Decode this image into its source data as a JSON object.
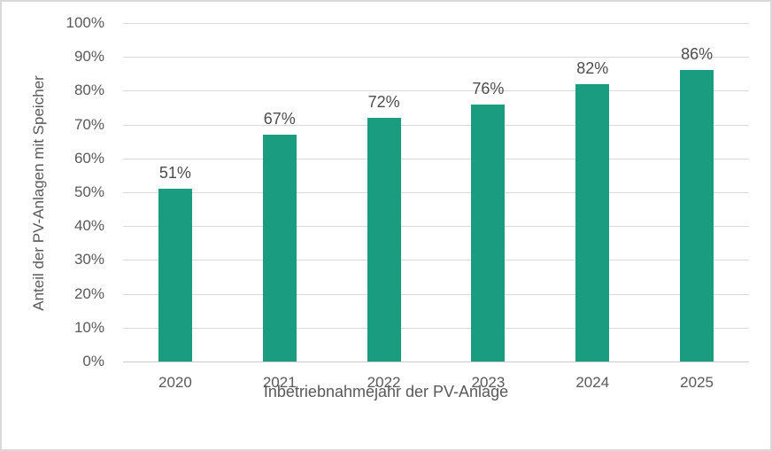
{
  "chart_data": {
    "type": "bar",
    "title": "",
    "categories": [
      "2020",
      "2021",
      "2022",
      "2023",
      "2024",
      "2025"
    ],
    "values": [
      51,
      67,
      72,
      76,
      82,
      86
    ],
    "data_labels": [
      "51%",
      "67%",
      "72%",
      "76%",
      "82%",
      "86%"
    ],
    "xlabel": "Inbetriebnahmejahr der PV-Anlage",
    "ylabel": "Anteil der PV-Anlagen mit Speicher",
    "ylim": [
      0,
      100
    ],
    "ytick_values": [
      0,
      10,
      20,
      30,
      40,
      50,
      60,
      70,
      80,
      90,
      100
    ],
    "ytick_labels": [
      "0%",
      "10%",
      "20%",
      "30%",
      "40%",
      "50%",
      "60%",
      "70%",
      "80%",
      "90%",
      "100%"
    ],
    "grid": "horizontal",
    "legend_position": "none",
    "bar_color": "#1a9c80",
    "gridline_color": "#d9d9d9",
    "text_color": "#595959",
    "frame_border_color": "#d9d9d9"
  }
}
